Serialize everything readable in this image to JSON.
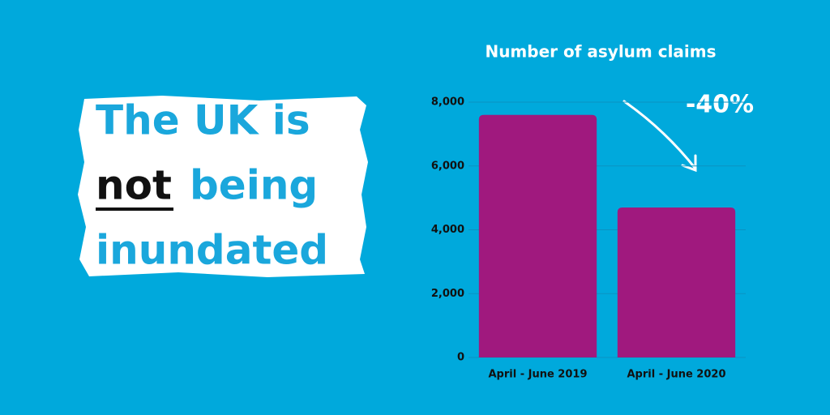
{
  "headline": [
    "The UK is",
    "not",
    "being",
    "inundated"
  ],
  "chart_data": {
    "type": "bar",
    "title": "Number of asylum claims",
    "categories": [
      "April - June 2019",
      "April - June 2020"
    ],
    "values": [
      7600,
      4700
    ],
    "color": "#a0197e",
    "ylim": [
      0,
      8000
    ],
    "yticks": [
      0,
      {
        "value": 2000,
        "label": "2,000"
      },
      {
        "value": 4000,
        "label": "4,000"
      },
      {
        "value": 6000,
        "label": "6,000"
      },
      {
        "value": 8000,
        "label": "8,000"
      }
    ],
    "grid": true,
    "annotation": "-40%"
  }
}
